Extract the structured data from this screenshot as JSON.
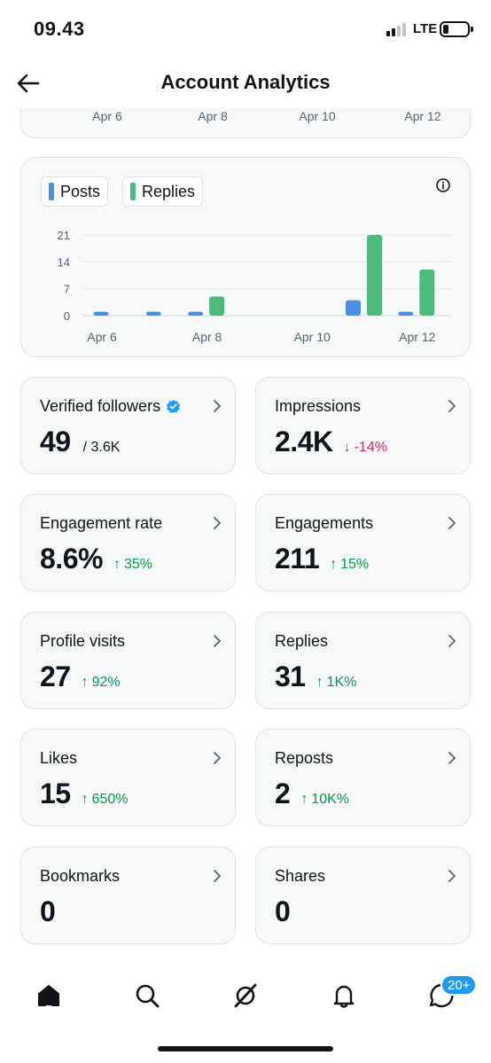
{
  "status_bar": {
    "time": "09.43",
    "network": "LTE"
  },
  "header": {
    "title": "Account Analytics"
  },
  "top_card": {
    "axis_labels": [
      "Apr 6",
      "Apr 8",
      "Apr 10",
      "Apr 12"
    ]
  },
  "chart": {
    "legend": {
      "posts_label": "Posts",
      "replies_label": "Replies"
    },
    "info_icon": "info-icon"
  },
  "chart_data": {
    "type": "bar",
    "categories": [
      "Apr 6",
      "Apr 7",
      "Apr 8",
      "Apr 9",
      "Apr 10",
      "Apr 11",
      "Apr 12"
    ],
    "x_tick_labels": [
      "Apr 6",
      "Apr 8",
      "Apr 10",
      "Apr 12"
    ],
    "series": [
      {
        "name": "Posts",
        "color": "#4a90e2",
        "values": [
          1,
          1,
          1,
          0,
          0,
          4,
          1
        ]
      },
      {
        "name": "Replies",
        "color": "#4cba7b",
        "values": [
          0,
          0,
          5,
          0,
          0,
          21,
          12
        ]
      }
    ],
    "y_ticks": [
      0,
      7,
      14,
      21
    ],
    "ylim": [
      0,
      21
    ],
    "grid": true
  },
  "metrics": [
    {
      "label": "Verified followers",
      "value": "49",
      "sub": "/ 3.6K",
      "verified": true
    },
    {
      "label": "Impressions",
      "value": "2.4K",
      "delta": "-14%",
      "direction": "down",
      "arrow": "↓"
    },
    {
      "label": "Engagement rate",
      "value": "8.6%",
      "delta": "35%",
      "direction": "up",
      "arrow": "↑"
    },
    {
      "label": "Engagements",
      "value": "211",
      "delta": "15%",
      "direction": "up",
      "arrow": "↑"
    },
    {
      "label": "Profile visits",
      "value": "27",
      "delta": "92%",
      "direction": "up",
      "arrow": "↑"
    },
    {
      "label": "Replies",
      "value": "31",
      "delta": "1K%",
      "direction": "up",
      "arrow": "↑"
    },
    {
      "label": "Likes",
      "value": "15",
      "delta": "650%",
      "direction": "up",
      "arrow": "↑"
    },
    {
      "label": "Reposts",
      "value": "2",
      "delta": "10K%",
      "direction": "up",
      "arrow": "↑"
    },
    {
      "label": "Bookmarks",
      "value": "0"
    },
    {
      "label": "Shares",
      "value": "0"
    }
  ],
  "bottom_nav": {
    "items": [
      "home-icon",
      "search-icon",
      "grok-icon",
      "bell-icon",
      "messages-icon"
    ],
    "messages_badge": "20+"
  },
  "colors": {
    "posts": "#4a90e2",
    "replies": "#4cba7b",
    "up": "#00994d",
    "down": "#e0245e",
    "badge": "#1d9bf0"
  }
}
